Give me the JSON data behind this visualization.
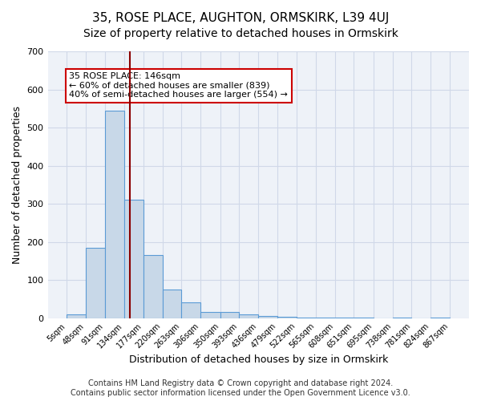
{
  "title": "35, ROSE PLACE, AUGHTON, ORMSKIRK, L39 4UJ",
  "subtitle": "Size of property relative to detached houses in Ormskirk",
  "xlabel": "Distribution of detached houses by size in Ormskirk",
  "ylabel": "Number of detached properties",
  "bin_edges": [
    5,
    48,
    91,
    134,
    177,
    220,
    263,
    306,
    350,
    393,
    436,
    479,
    522,
    565,
    608,
    651,
    695,
    738,
    781,
    824,
    867
  ],
  "bar_heights": [
    10,
    185,
    545,
    310,
    165,
    75,
    42,
    17,
    17,
    10,
    5,
    3,
    2,
    1,
    1,
    1,
    0,
    1,
    0,
    1
  ],
  "bar_color": "#c8d8e8",
  "bar_edge_color": "#5b9bd5",
  "grid_color": "#d0d8e8",
  "background_color": "#eef2f8",
  "property_line_x": 146,
  "property_line_color": "#8b0000",
  "annotation_text": "35 ROSE PLACE: 146sqm\n← 60% of detached houses are smaller (839)\n40% of semi-detached houses are larger (554) →",
  "annotation_box_color": "white",
  "annotation_box_edge_color": "#cc0000",
  "ylim": [
    0,
    700
  ],
  "tick_labels": [
    "5sqm",
    "48sqm",
    "91sqm",
    "134sqm",
    "177sqm",
    "220sqm",
    "263sqm",
    "306sqm",
    "350sqm",
    "393sqm",
    "436sqm",
    "479sqm",
    "522sqm",
    "565sqm",
    "608sqm",
    "651sqm",
    "695sqm",
    "738sqm",
    "781sqm",
    "824sqm",
    "867sqm"
  ],
  "footer_text": "Contains HM Land Registry data © Crown copyright and database right 2024.\nContains public sector information licensed under the Open Government Licence v3.0.",
  "title_fontsize": 11,
  "subtitle_fontsize": 10,
  "xlabel_fontsize": 9,
  "ylabel_fontsize": 9,
  "tick_fontsize": 7,
  "annotation_fontsize": 8,
  "footer_fontsize": 7
}
